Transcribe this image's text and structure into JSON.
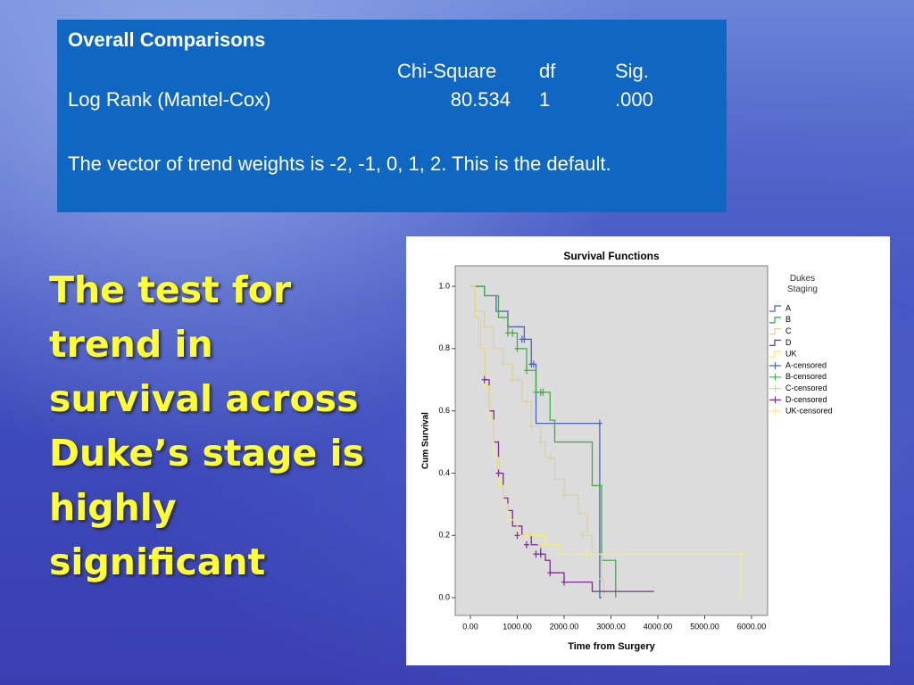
{
  "table": {
    "title": "Overall Comparisons",
    "headers": [
      "Chi-Square",
      "df",
      "Sig."
    ],
    "rows": [
      [
        "Log Rank (Mantel-Cox)",
        "80.534",
        "1",
        ".000"
      ]
    ],
    "note": "The vector of trend weights is -2, -1, 0, 1, 2. This is the default."
  },
  "headline": "The test for trend in survival across Duke’s stage is highly significant",
  "chart_data": {
    "type": "step",
    "title": "Survival Functions",
    "x_label": "Time from Surgery",
    "y_label": "Cum Survival",
    "legend_title": "Dukes Staging",
    "legend": "right",
    "xlim": [
      -324,
      6343
    ],
    "ylim": [
      -0.057,
      1.066
    ],
    "xticks": [
      {
        "value": 0,
        "label": "0.00"
      },
      {
        "value": 1000,
        "label": "1000.00"
      },
      {
        "value": 2000,
        "label": "2000.00"
      },
      {
        "value": 3000,
        "label": "3000.00"
      },
      {
        "value": 4000,
        "label": "4000.00"
      },
      {
        "value": 5000,
        "label": "5000.00"
      },
      {
        "value": 6000,
        "label": "6000.00"
      }
    ],
    "yticks": [
      {
        "value": 0,
        "label": "0.0"
      },
      0.2,
      0.4,
      0.6,
      0.8,
      {
        "value": 1,
        "label": "1.0"
      }
    ],
    "series": [
      {
        "name": "A",
        "kind": "step",
        "color": "#4a63b5",
        "x": [
          0,
          300,
          550,
          800,
          1150,
          1300,
          1400,
          2760,
          2800
        ],
        "values": [
          1,
          0.97,
          0.92,
          0.87,
          0.83,
          0.75,
          0.56,
          0,
          0
        ]
      },
      {
        "name": "B",
        "kind": "step",
        "color": "#3fae49",
        "x": [
          0,
          300,
          600,
          800,
          1000,
          1200,
          1400,
          1700,
          1800,
          2600,
          2800,
          3100
        ],
        "values": [
          1,
          0.97,
          0.9,
          0.85,
          0.8,
          0.73,
          0.66,
          0.57,
          0.5,
          0.36,
          0.12,
          0
        ]
      },
      {
        "name": "C",
        "kind": "step",
        "color": "#d8d0a8",
        "x": [
          0,
          100,
          300,
          500,
          700,
          900,
          1100,
          1300,
          1500,
          1600,
          1800,
          2000,
          2300,
          2500,
          2600,
          2800,
          2850
        ],
        "values": [
          1,
          0.92,
          0.87,
          0.8,
          0.75,
          0.7,
          0.63,
          0.55,
          0.5,
          0.45,
          0.38,
          0.33,
          0.27,
          0.2,
          0.14,
          0.06,
          0
        ]
      },
      {
        "name": "D",
        "kind": "step",
        "color": "#7b2d8e",
        "x": [
          0,
          100,
          200,
          300,
          400,
          500,
          600,
          700,
          800,
          900,
          1100,
          1300,
          1500,
          1600,
          1700,
          2000,
          2600,
          3920
        ],
        "values": [
          1,
          0.9,
          0.8,
          0.7,
          0.6,
          0.5,
          0.4,
          0.32,
          0.28,
          0.23,
          0.2,
          0.17,
          0.14,
          0.12,
          0.08,
          0.05,
          0.02,
          0.02
        ]
      },
      {
        "name": "UK",
        "kind": "step",
        "color": "#f2ee7e",
        "x": [
          0,
          100,
          200,
          300,
          400,
          500,
          600,
          700,
          800,
          1000,
          1600,
          1900,
          5770
        ],
        "values": [
          1,
          0.9,
          0.8,
          0.68,
          0.57,
          0.45,
          0.36,
          0.3,
          0.25,
          0.2,
          0.17,
          0.14,
          0
        ]
      },
      {
        "name": "A-censored",
        "kind": "censor",
        "color": "#4a63b5",
        "x": [
          1100,
          1150,
          1300,
          1350,
          2760
        ],
        "values": [
          0.83,
          0.83,
          0.75,
          0.75,
          0.56
        ]
      },
      {
        "name": "B-censored",
        "kind": "censor",
        "color": "#3fae49",
        "x": [
          800,
          900,
          1000,
          1200,
          1400,
          1500,
          1550
        ],
        "values": [
          0.85,
          0.85,
          0.8,
          0.73,
          0.66,
          0.66,
          0.66
        ]
      },
      {
        "name": "C-censored",
        "kind": "censor",
        "color": "#d8d0a8",
        "x": [
          700,
          900,
          1000,
          1200,
          1300,
          1500,
          1700,
          2000,
          2400,
          2800
        ],
        "values": [
          0.75,
          0.7,
          0.7,
          0.63,
          0.55,
          0.5,
          0.45,
          0.33,
          0.2,
          0.06
        ]
      },
      {
        "name": "D-censored",
        "kind": "censor",
        "color": "#7b2d8e",
        "x": [
          300,
          600,
          1000,
          1200,
          1400,
          1500,
          1700,
          2000
        ],
        "values": [
          0.7,
          0.4,
          0.2,
          0.17,
          0.14,
          0.14,
          0.08,
          0.05
        ]
      },
      {
        "name": "UK-censored",
        "kind": "censor",
        "color": "#f2ee7e",
        "x": [
          1500,
          2500,
          5770
        ],
        "values": [
          0.17,
          0.14,
          0.14
        ]
      }
    ]
  }
}
